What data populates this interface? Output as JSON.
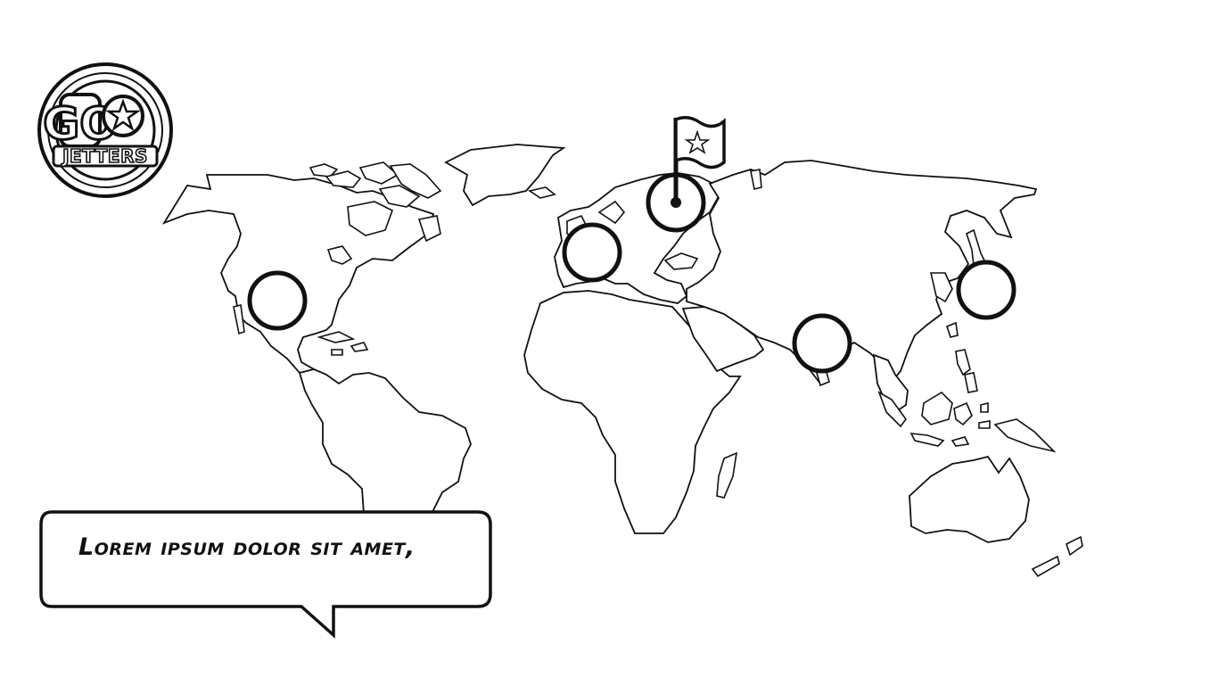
{
  "logo": {
    "line1": "GO",
    "line2": "JETTERS",
    "star_icon": "star-icon"
  },
  "dialog": {
    "text": "Lorem ipsum dolor sit amet,"
  },
  "map": {
    "icon": "world-map",
    "flag_icon": "flag-star-icon",
    "destinations": [
      {
        "id": "north-america"
      },
      {
        "id": "europe"
      },
      {
        "id": "russia"
      },
      {
        "id": "india"
      },
      {
        "id": "east-asia"
      }
    ],
    "current_destination": "russia"
  },
  "colors": {
    "background": "#ffffff",
    "outline": "#111111"
  }
}
